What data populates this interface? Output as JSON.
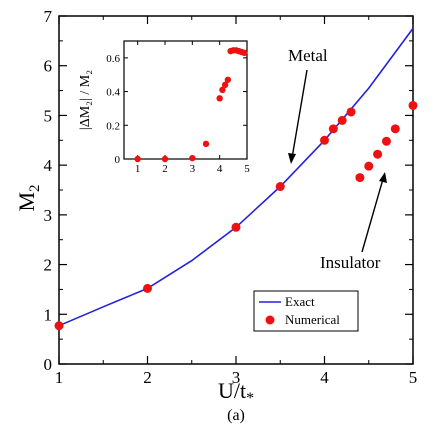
{
  "chart_data": [
    {
      "type": "scatter",
      "panel": "main",
      "xlabel_main": "U/t",
      "xlabel_sub": "*",
      "ylabel_main": "M",
      "ylabel_sub": "2",
      "caption": "(a)",
      "xlim": [
        1,
        5
      ],
      "ylim": [
        0,
        7
      ],
      "xticks": [
        1,
        2,
        3,
        4,
        5
      ],
      "yticks": [
        0,
        1,
        2,
        3,
        4,
        5,
        6,
        7
      ],
      "grid": false,
      "legend_position": "bottom-right",
      "series": [
        {
          "name": "Exact",
          "style": "line",
          "color": "#2222dd",
          "x": [
            1.0,
            1.5,
            2.0,
            2.5,
            3.0,
            3.5,
            4.0,
            4.5,
            5.0
          ],
          "y": [
            0.77,
            1.15,
            1.52,
            2.08,
            2.75,
            3.57,
            4.5,
            5.55,
            6.75
          ]
        },
        {
          "name": "Numerical",
          "style": "markers",
          "color": "#ee1111",
          "x": [
            1.0,
            2.0,
            3.0,
            3.5,
            4.0,
            4.1,
            4.2,
            4.3,
            4.4,
            4.5,
            4.6,
            4.7,
            4.8,
            5.0
          ],
          "y": [
            0.77,
            1.52,
            2.75,
            3.57,
            4.5,
            4.73,
            4.9,
            5.07,
            3.75,
            3.98,
            4.22,
            4.48,
            4.73,
            5.2
          ]
        }
      ],
      "annotations": [
        {
          "text": "Metal",
          "target_x": 3.65,
          "target_y": 4.5
        },
        {
          "text": "Insulator",
          "target_x": 4.68,
          "target_y": 4.1
        }
      ]
    },
    {
      "type": "scatter",
      "panel": "inset",
      "ylabel": "|ΔM₂| / M₂",
      "xlim": [
        0.5,
        5.0
      ],
      "ylim": [
        0,
        0.7
      ],
      "xticks": [
        1,
        2,
        3,
        4,
        5
      ],
      "yticks": [
        0,
        0.2,
        0.4,
        0.6
      ],
      "ytick_labels": [
        "0",
        "0.2",
        "0.4",
        "0.6"
      ],
      "grid": false,
      "series": [
        {
          "name": "",
          "style": "markers",
          "color": "#ee1111",
          "x": [
            1.0,
            2.0,
            3.0,
            3.5,
            4.0,
            4.1,
            4.2,
            4.3,
            4.4,
            4.5,
            4.6,
            4.7,
            4.8,
            4.9
          ],
          "y": [
            0.0,
            0.0,
            0.005,
            0.09,
            0.36,
            0.41,
            0.44,
            0.47,
            0.64,
            0.645,
            0.645,
            0.64,
            0.635,
            0.63
          ]
        }
      ]
    }
  ]
}
